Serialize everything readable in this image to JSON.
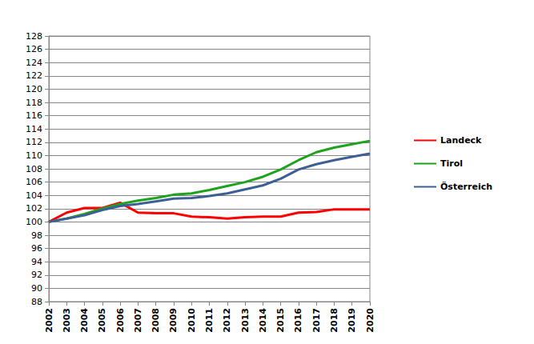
{
  "chart_data": {
    "type": "line",
    "categories": [
      "2002",
      "2003",
      "2004",
      "2005",
      "2006",
      "2007",
      "2008",
      "2009",
      "2010",
      "2011",
      "2012",
      "2013",
      "2014",
      "2015",
      "2016",
      "2017",
      "2018",
      "2019",
      "2020"
    ],
    "series": [
      {
        "name": "Landeck",
        "color": "#ff0000",
        "values": [
          100,
          101.4,
          102.1,
          102.1,
          102.9,
          101.4,
          101.3,
          101.3,
          100.8,
          100.7,
          100.5,
          100.7,
          100.8,
          100.8,
          101.4,
          101.5,
          101.9,
          101.9,
          101.9
        ]
      },
      {
        "name": "Tirol",
        "color": "#1ea31e",
        "values": [
          100,
          100.5,
          101.2,
          102.0,
          102.7,
          103.2,
          103.6,
          104.1,
          104.3,
          104.8,
          105.4,
          106.0,
          106.8,
          107.9,
          109.3,
          110.5,
          111.2,
          111.7,
          112.2
        ]
      },
      {
        "name": "Österreich",
        "color": "#3c5f96",
        "values": [
          100,
          100.5,
          101.0,
          101.8,
          102.4,
          102.7,
          103.1,
          103.5,
          103.6,
          103.9,
          104.3,
          104.9,
          105.5,
          106.5,
          107.9,
          108.7,
          109.3,
          109.8,
          110.3
        ]
      }
    ],
    "ylim": [
      88,
      128
    ],
    "yticks": [
      88,
      90,
      92,
      94,
      96,
      98,
      100,
      102,
      104,
      106,
      108,
      110,
      112,
      114,
      116,
      118,
      120,
      122,
      124,
      126,
      128
    ],
    "grid": true,
    "legend": "right"
  }
}
